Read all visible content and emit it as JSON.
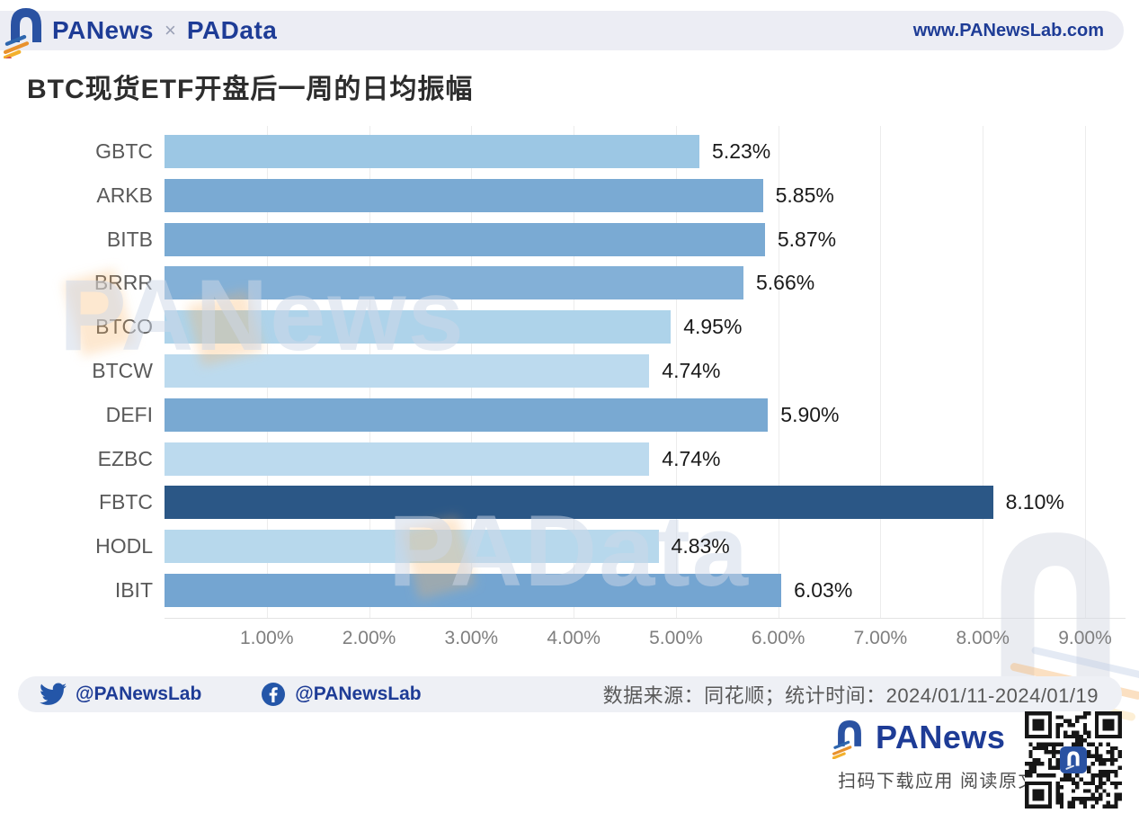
{
  "header": {
    "brand_primary": "PANews",
    "brand_separator": "×",
    "brand_secondary": "PAData",
    "website": "www.PANewsLab.com"
  },
  "page_title": "BTC现货ETF开盘后一周的日均振幅",
  "chart_data": {
    "type": "bar",
    "orientation": "horizontal",
    "title": "BTC现货ETF开盘后一周的日均振幅",
    "categories": [
      "GBTC",
      "ARKB",
      "BITB",
      "BRRR",
      "BTCO",
      "BTCW",
      "DEFI",
      "EZBC",
      "FBTC",
      "HODL",
      "IBIT"
    ],
    "values": [
      5.23,
      5.85,
      5.87,
      5.66,
      4.95,
      4.74,
      5.9,
      4.74,
      8.1,
      4.83,
      6.03
    ],
    "value_labels": [
      "5.23%",
      "5.85%",
      "5.87%",
      "5.66%",
      "4.95%",
      "4.74%",
      "5.90%",
      "4.74%",
      "8.10%",
      "4.83%",
      "6.03%"
    ],
    "bar_colors": [
      "#9cc7e4",
      "#7aaad3",
      "#7aaad3",
      "#83b0d7",
      "#aed3ea",
      "#bcdaee",
      "#79a9d2",
      "#bcdaee",
      "#2b5786",
      "#b7d8ec",
      "#74a5d1"
    ],
    "highlight_category": "FBTC",
    "highlight_color": "#2b5786",
    "x_ticks": [
      "1.00%",
      "2.00%",
      "3.00%",
      "4.00%",
      "5.00%",
      "6.00%",
      "7.00%",
      "8.00%",
      "9.00%"
    ],
    "xlim": [
      0,
      9
    ],
    "grid": "vertical",
    "legend": "none",
    "xlabel": "",
    "ylabel": ""
  },
  "watermarks": {
    "text_1": "PANews",
    "text_2": "PAData"
  },
  "footer": {
    "twitter_handle": "@PANewsLab",
    "facebook_handle": "@PANewsLab",
    "source_note": "数据来源：同花顺；统计时间：2024/01/11-2024/01/19"
  },
  "branding": {
    "logo_text": "PANews",
    "tagline": "扫码下载应用 阅读原文"
  },
  "colors": {
    "brand_blue": "#1e3c96",
    "band_bg": "#ecedf4",
    "axis_text": "#7f7f7f",
    "category_text": "#595959",
    "value_text": "#1a1a1a"
  }
}
